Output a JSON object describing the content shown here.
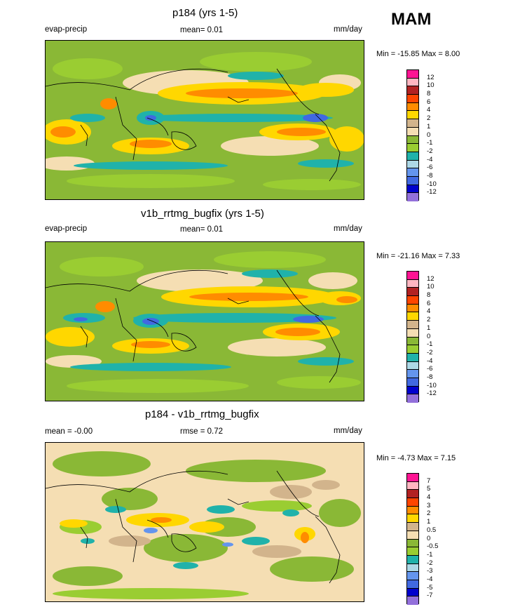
{
  "season": "MAM",
  "panels": [
    {
      "title": "p184 (yrs 1-5)",
      "left_label": "evap-precip",
      "center_label": "mean=   0.01",
      "right_label": "mm/day",
      "minmax": "Min = -15.85 Max =   8.00",
      "legend": {
        "colors": [
          "#ff1493",
          "#ffb6c1",
          "#b22222",
          "#ff4500",
          "#ff8c00",
          "#ffd700",
          "#d2b48c",
          "#f5deb3",
          "#8ab836",
          "#9acd32",
          "#20b2aa",
          "#add8e6",
          "#6495ed",
          "#4169e1",
          "#0000cd",
          "#9370db"
        ],
        "labels": [
          "12",
          "10",
          "8",
          "6",
          "4",
          "2",
          "1",
          "0",
          "-1",
          "-2",
          "-4",
          "-6",
          "-8",
          "-10",
          "-12"
        ]
      }
    },
    {
      "title": "v1b_rrtmg_bugfix (yrs 1-5)",
      "left_label": "evap-precip",
      "center_label": "mean=   0.01",
      "right_label": "mm/day",
      "minmax": "Min = -21.16 Max =   7.33",
      "legend": {
        "colors": [
          "#ff1493",
          "#ffb6c1",
          "#b22222",
          "#ff4500",
          "#ff8c00",
          "#ffd700",
          "#d2b48c",
          "#f5deb3",
          "#8ab836",
          "#9acd32",
          "#20b2aa",
          "#add8e6",
          "#6495ed",
          "#4169e1",
          "#0000cd",
          "#9370db"
        ],
        "labels": [
          "12",
          "10",
          "8",
          "6",
          "4",
          "2",
          "1",
          "0",
          "-1",
          "-2",
          "-4",
          "-6",
          "-8",
          "-10",
          "-12"
        ]
      }
    },
    {
      "title": "p184 - v1b_rrtmg_bugfix",
      "left_label": "mean =  -0.00",
      "center_label": "rmse =   0.72",
      "right_label": "mm/day",
      "minmax": "Min =  -4.73 Max =   7.15",
      "legend": {
        "colors": [
          "#ff1493",
          "#ffb6c1",
          "#b22222",
          "#ff4500",
          "#ff8c00",
          "#ffd700",
          "#d2b48c",
          "#f5deb3",
          "#8ab836",
          "#9acd32",
          "#20b2aa",
          "#add8e6",
          "#6495ed",
          "#4169e1",
          "#0000cd",
          "#9370db"
        ],
        "labels": [
          "7",
          "5",
          "4",
          "3",
          "2",
          "1",
          "0.5",
          "0",
          "-0.5",
          "-1",
          "-2",
          "-3",
          "-4",
          "-5",
          "-7"
        ]
      }
    }
  ]
}
